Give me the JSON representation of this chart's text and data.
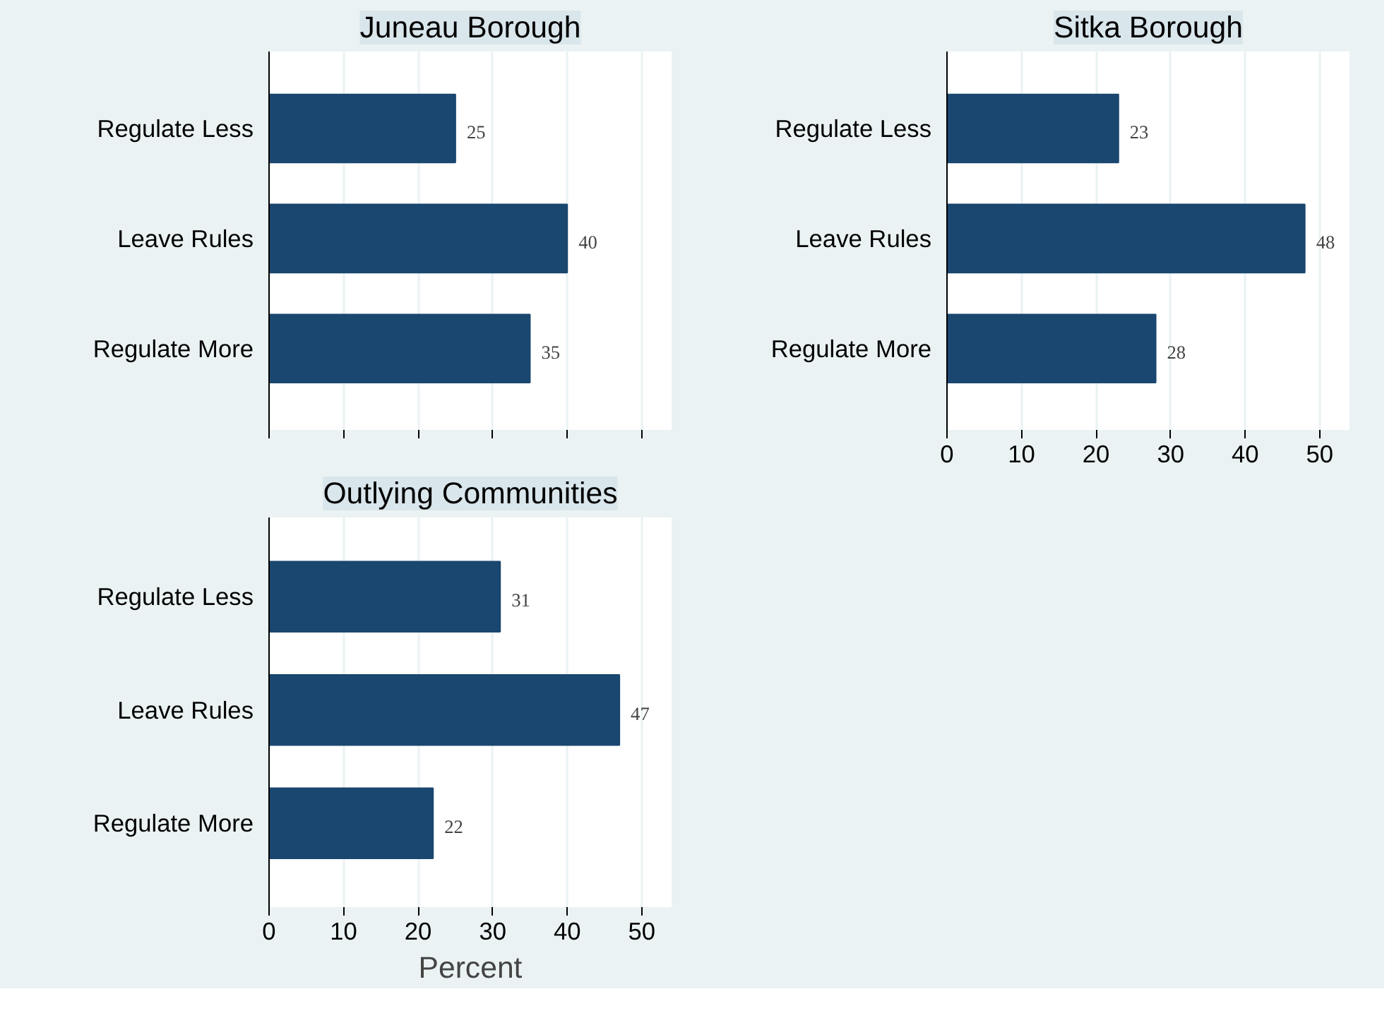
{
  "chart_data": [
    {
      "type": "bar",
      "orientation": "horizontal",
      "title": "Juneau Borough",
      "categories": [
        "Regulate Less",
        "Leave Rules",
        "Regulate More"
      ],
      "values": [
        25,
        40,
        35
      ],
      "color": "#1a476f",
      "xlim": [
        0,
        54
      ],
      "xticks": [
        0,
        10,
        20,
        30,
        40,
        50
      ],
      "grid": "x",
      "data_labels": true,
      "tick_labels": "y"
    },
    {
      "type": "bar",
      "orientation": "horizontal",
      "title": "Sitka Borough",
      "categories": [
        "Regulate Less",
        "Leave Rules",
        "Regulate More"
      ],
      "values": [
        23,
        48,
        28
      ],
      "color": "#1a476f",
      "xlim": [
        0,
        54
      ],
      "xticks": [
        0,
        10,
        20,
        30,
        40,
        50
      ],
      "grid": "x",
      "data_labels": true
    },
    {
      "type": "bar",
      "orientation": "horizontal",
      "title": "Outlying Communities",
      "categories": [
        "Regulate Less",
        "Leave Rules",
        "Regulate More"
      ],
      "values": [
        31,
        47,
        22
      ],
      "color": "#1a476f",
      "xlim": [
        0,
        54
      ],
      "xticks": [
        0,
        10,
        20,
        30,
        40,
        50
      ],
      "grid": "x",
      "data_labels": true,
      "xlabel": "Percent"
    }
  ]
}
